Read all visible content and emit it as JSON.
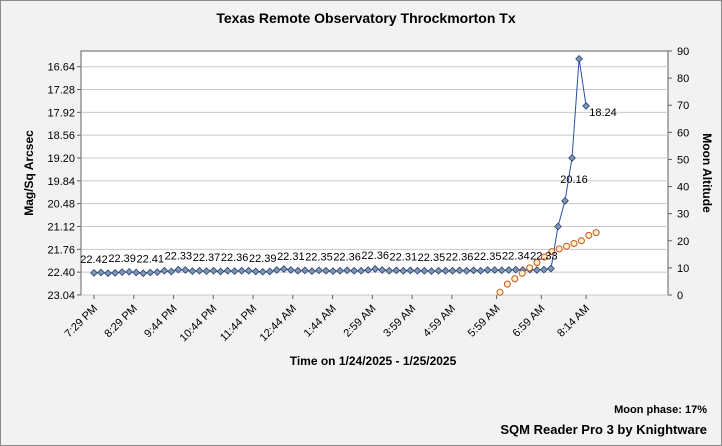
{
  "chart_data": {
    "type": "line",
    "title": "Texas Remote Observatory   Throckmorton Tx",
    "xlabel": "Time on 1/24/2025 - 1/25/2025",
    "ylabel_left": "Mag/Sq Arcsec",
    "ylabel_right": "Moon Altitude",
    "x_tick_labels": [
      "7:29 PM",
      "8:29 PM",
      "9:44 PM",
      "10:44 PM",
      "11:44 PM",
      "12:44 AM",
      "1:44 AM",
      "2:59 AM",
      "3:59 AM",
      "4:59 AM",
      "5:59 AM",
      "6:59 AM",
      "8:14 AM"
    ],
    "y_left_ticks": [
      "16.64",
      "17.28",
      "17.92",
      "18.56",
      "19.20",
      "19.84",
      "20.48",
      "21.12",
      "21.76",
      "22.40",
      "23.04"
    ],
    "y_left_range": [
      23.04,
      16.2
    ],
    "y_right_ticks": [
      "0",
      "10",
      "20",
      "30",
      "40",
      "50",
      "60",
      "70",
      "80",
      "90"
    ],
    "y_right_range": [
      0,
      90
    ],
    "grid": "horizontal",
    "series": [
      {
        "axis": "left",
        "marker": "diamond",
        "color": "#2b4f9e",
        "values": [
          22.42,
          22.41,
          22.43,
          22.42,
          22.4,
          22.39,
          22.41,
          22.43,
          22.41,
          22.4,
          22.36,
          22.38,
          22.33,
          22.34,
          22.37,
          22.36,
          22.37,
          22.36,
          22.38,
          22.36,
          22.37,
          22.36,
          22.36,
          22.38,
          22.39,
          22.38,
          22.34,
          22.31,
          22.34,
          22.36,
          22.35,
          22.37,
          22.35,
          22.36,
          22.37,
          22.36,
          22.35,
          22.36,
          22.36,
          22.34,
          22.31,
          22.34,
          22.36,
          22.35,
          22.36,
          22.35,
          22.36,
          22.36,
          22.37,
          22.36,
          22.36,
          22.36,
          22.35,
          22.36,
          22.35,
          22.36,
          22.34,
          22.34,
          22.35,
          22.34,
          22.33,
          22.34,
          22.33,
          22.34,
          22.33,
          22.3,
          21.12,
          20.4,
          19.2,
          16.42,
          17.74
        ]
      },
      {
        "axis": "right",
        "marker": "circle",
        "color": "#c8541e",
        "values": [
          1,
          4,
          6,
          8,
          10,
          12,
          14,
          16,
          17,
          18,
          19,
          20,
          22,
          23
        ]
      }
    ],
    "data_labels": [
      "22.42",
      "22.39",
      "22.41",
      "22.33",
      "22.37",
      "22.36",
      "22.39",
      "22.31",
      "22.35",
      "22.36",
      "22.36",
      "22.31",
      "22.35",
      "22.36",
      "22.35",
      "22.34",
      "22.33",
      "20.16",
      "18.24"
    ]
  },
  "footer": {
    "moon_phase": "Moon phase: 17%",
    "app": "SQM Reader Pro 3 by Knightware"
  }
}
